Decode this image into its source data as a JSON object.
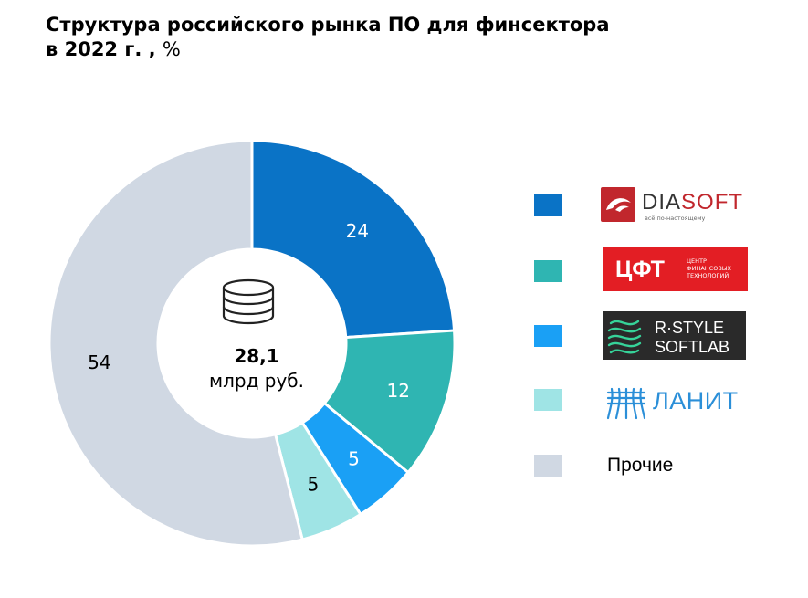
{
  "title": {
    "line1": "Структура российского рынка ПО для финсектора",
    "line2_bold": "в 2022 г. ,",
    "line2_unit": "%"
  },
  "chart_data": {
    "type": "pie",
    "donut": true,
    "center": {
      "value": "28,1",
      "unit": "млрд руб."
    },
    "slices": [
      {
        "label": "DIASOFT",
        "value": 24,
        "color": "#0A73C6",
        "label_color": "#ffffff"
      },
      {
        "label": "ЦФТ",
        "value": 12,
        "color": "#2FB5B2",
        "label_color": "#ffffff"
      },
      {
        "label": "R-STYLE SOFTLAB",
        "value": 5,
        "color": "#1AA0F5",
        "label_color": "#ffffff"
      },
      {
        "label": "ЛАНИТ",
        "value": 5,
        "color": "#9FE4E5",
        "label_color": "#000000"
      },
      {
        "label": "Прочие",
        "value": 54,
        "color": "#D0D8E3",
        "label_color": "#000000"
      }
    ]
  },
  "legend": {
    "diasoft": {
      "name": "DIASOFT",
      "dia": "DIA",
      "soft": "SOFT",
      "tagline": "всё по-настоящему",
      "color": "#0A73C6"
    },
    "cft": {
      "name": "ЦФТ",
      "tagline": [
        "ЦЕНТР",
        "ФИНАНСОВЫХ",
        "ТЕХНОЛОГИЙ"
      ],
      "color": "#2FB5B2"
    },
    "rstyle": {
      "line1": "R·STYLE",
      "line2": "SOFTLAB",
      "color": "#1AA0F5"
    },
    "lanit": {
      "name": "ЛАНИТ",
      "color": "#9FE4E5"
    },
    "other": {
      "label": "Прочие",
      "color": "#D0D8E3"
    }
  }
}
